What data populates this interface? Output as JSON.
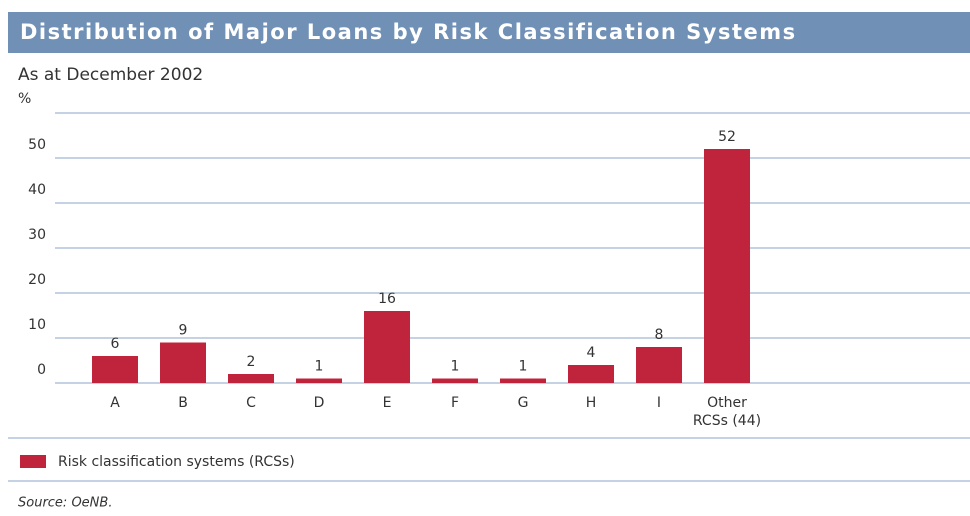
{
  "chart_data": {
    "type": "bar",
    "title": "Distribution of Major Loans by Risk Classification Systems",
    "subtitle": "As at December 2002",
    "y_axis_label": "%",
    "categories": [
      "A",
      "B",
      "C",
      "D",
      "E",
      "F",
      "G",
      "H",
      "I",
      "Other\nRCSs (44)"
    ],
    "series": [
      {
        "name": "Risk classification systems (RCSs)",
        "color": "#c0243c",
        "values": [
          6,
          9,
          2,
          1,
          16,
          1,
          1,
          4,
          8,
          52
        ]
      }
    ],
    "ylim": [
      0,
      60
    ],
    "yticks": [
      0,
      10,
      20,
      30,
      40,
      50
    ],
    "grid": true,
    "source": "Source: OeNB."
  }
}
